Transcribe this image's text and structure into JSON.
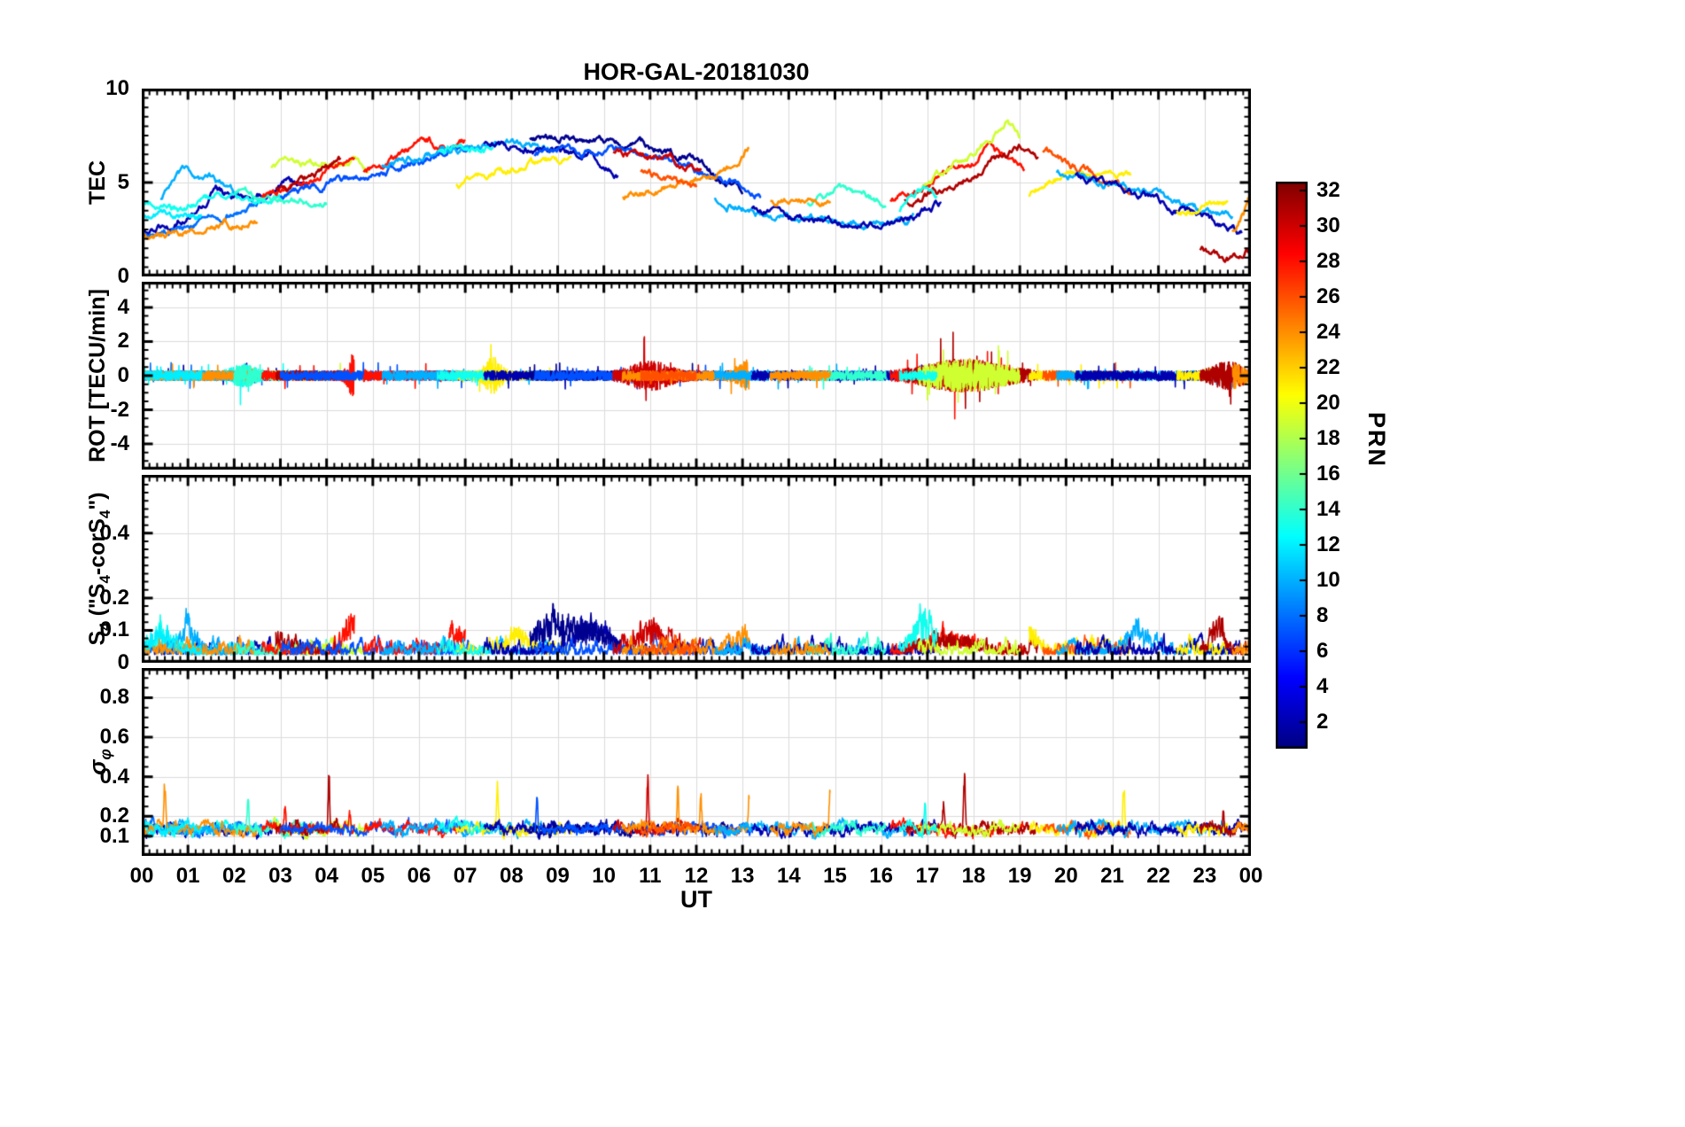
{
  "chart_data": {
    "type": "line",
    "title": "HOR-GAL-20181030",
    "xlabel": "UT",
    "xlim": [
      0,
      24
    ],
    "x_tick_hours": [
      0,
      1,
      2,
      3,
      4,
      5,
      6,
      7,
      8,
      9,
      10,
      11,
      12,
      13,
      14,
      15,
      16,
      17,
      18,
      19,
      20,
      21,
      22,
      23,
      24
    ],
    "x_tick_labels": [
      "00",
      "01",
      "02",
      "03",
      "04",
      "05",
      "06",
      "07",
      "08",
      "09",
      "10",
      "11",
      "12",
      "13",
      "14",
      "15",
      "16",
      "17",
      "18",
      "19",
      "20",
      "21",
      "22",
      "23",
      "00"
    ],
    "x_minor_step_hours": 0.16667,
    "grid": true,
    "grid_color": "#dcdcdc",
    "frame_color": "#000000",
    "colorbar": {
      "label": "PRN",
      "colormap": "jet",
      "cmin": 0.5,
      "cmax": 32.5,
      "ticks": [
        2,
        4,
        6,
        8,
        10,
        12,
        14,
        16,
        18,
        20,
        22,
        24,
        26,
        28,
        30,
        32
      ]
    },
    "panels": [
      {
        "id": "tec",
        "ylabel_plain": "TEC",
        "ylabel_rich": [
          {
            "t": "TEC"
          }
        ],
        "ylim": [
          0,
          10
        ],
        "yticks": [
          0,
          5,
          10
        ],
        "minor_y": 0.5
      },
      {
        "id": "rot",
        "ylabel_plain": "ROT [TECU/min]",
        "ylabel_rich": [
          {
            "t": "ROT [TECU/min]"
          }
        ],
        "ylim": [
          -5.5,
          5.5
        ],
        "yticks": [
          -4,
          -2,
          0,
          2,
          4
        ],
        "minor_y": 0.5
      },
      {
        "id": "s4",
        "ylabel_plain": "S4 (\"S4-corS4\")",
        "ylabel_rich": [
          {
            "t": "S"
          },
          {
            "s": "4"
          },
          {
            "t": " (\"S"
          },
          {
            "s": "4"
          },
          {
            "t": "-corS"
          },
          {
            "s": "4"
          },
          {
            "t": "\")"
          }
        ],
        "ylim": [
          0,
          0.58
        ],
        "yticks": [
          0,
          0.1,
          0.2,
          0.4
        ],
        "minor_y": 0.025
      },
      {
        "id": "sig",
        "ylabel_plain": "sigma_phi",
        "ylabel_rich": [
          {
            "t": "σ"
          },
          {
            "s": "φ"
          }
        ],
        "ylim": [
          0,
          0.95
        ],
        "yticks": [
          0.1,
          0.2,
          0.4,
          0.6,
          0.8
        ],
        "minor_y": 0.05
      }
    ],
    "tracks": [
      {
        "prn": 2,
        "pts": [
          [
            0,
            2.4
          ],
          [
            0.7,
            2.8
          ],
          [
            1.6,
            4.6
          ],
          [
            2.2,
            4.2
          ],
          [
            3.0,
            4.8
          ],
          [
            3.6,
            5.1
          ]
        ]
      },
      {
        "prn": 8,
        "pts": [
          [
            0,
            2.1
          ],
          [
            1.0,
            2.6
          ],
          [
            2.0,
            3.4
          ],
          [
            2.6,
            3.9
          ]
        ]
      },
      {
        "prn": 13,
        "pts": [
          [
            0,
            4.1
          ],
          [
            0.8,
            3.6
          ],
          [
            1.6,
            4.3
          ],
          [
            2.4,
            3.9
          ],
          [
            3.2,
            4.1
          ]
        ]
      },
      {
        "prn": 10,
        "pts": [
          [
            0.4,
            4.2
          ],
          [
            0.9,
            5.4
          ],
          [
            1.5,
            5.1
          ],
          [
            2.1,
            4.4
          ]
        ]
      },
      {
        "prn": 24,
        "pts": [
          [
            0,
            2.2
          ],
          [
            0.8,
            2.4
          ],
          [
            1.7,
            2.6
          ],
          [
            2.5,
            3.2
          ]
        ]
      },
      {
        "prn": 12,
        "pts": [
          [
            0,
            3.0
          ],
          [
            0.6,
            3.3
          ],
          [
            1.3,
            3.1
          ]
        ]
      },
      {
        "prn": 14,
        "pts": [
          [
            2.0,
            4.5
          ],
          [
            2.6,
            4.2
          ],
          [
            3.3,
            4.0
          ],
          [
            4.0,
            4.1
          ]
        ]
      },
      {
        "prn": 19,
        "pts": [
          [
            2.8,
            5.7
          ],
          [
            3.5,
            6.0
          ],
          [
            4.3,
            6.2
          ],
          [
            4.9,
            5.9
          ]
        ]
      },
      {
        "prn": 28,
        "pts": [
          [
            2.6,
            4.4
          ],
          [
            3.4,
            5.0
          ],
          [
            4.2,
            5.9
          ],
          [
            4.6,
            6.3
          ]
        ]
      },
      {
        "prn": 31,
        "pts": [
          [
            2.9,
            4.7
          ],
          [
            3.6,
            5.3
          ],
          [
            4.3,
            6.2
          ]
        ]
      },
      {
        "prn": 7,
        "pts": [
          [
            3.0,
            4.4
          ],
          [
            4.0,
            5.0
          ],
          [
            5.0,
            5.3
          ],
          [
            5.8,
            6.0
          ],
          [
            6.6,
            6.6
          ],
          [
            7.1,
            6.9
          ]
        ]
      },
      {
        "prn": 28,
        "pts": [
          [
            4.8,
            5.6
          ],
          [
            5.5,
            6.4
          ],
          [
            6.2,
            7.2
          ],
          [
            6.6,
            6.8
          ],
          [
            7.0,
            7.1
          ]
        ]
      },
      {
        "prn": 10,
        "pts": [
          [
            5.2,
            5.9
          ],
          [
            6.0,
            6.3
          ],
          [
            7.0,
            7.0
          ],
          [
            7.6,
            7.2
          ],
          [
            8.3,
            7.0
          ],
          [
            8.8,
            6.6
          ]
        ]
      },
      {
        "prn": 21,
        "pts": [
          [
            6.8,
            4.9
          ],
          [
            7.4,
            5.3
          ],
          [
            8.0,
            5.9
          ],
          [
            8.7,
            6.1
          ],
          [
            9.3,
            6.3
          ]
        ]
      },
      {
        "prn": 13,
        "pts": [
          [
            6.4,
            6.7
          ],
          [
            7.0,
            7.0
          ],
          [
            7.6,
            6.8
          ]
        ]
      },
      {
        "prn": 2,
        "pts": [
          [
            7.4,
            7.1
          ],
          [
            8.2,
            6.9
          ],
          [
            9.0,
            6.6
          ],
          [
            9.7,
            6.4
          ],
          [
            10.3,
            5.6
          ]
        ]
      },
      {
        "prn": 1,
        "pts": [
          [
            8.4,
            7.3
          ],
          [
            9.2,
            7.5
          ],
          [
            9.9,
            7.2
          ],
          [
            10.6,
            7.0
          ],
          [
            11.3,
            6.7
          ],
          [
            12.0,
            6.2
          ],
          [
            12.6,
            5.0
          ],
          [
            13.0,
            4.4
          ]
        ]
      },
      {
        "prn": 7,
        "pts": [
          [
            8.5,
            6.4
          ],
          [
            9.4,
            6.7
          ],
          [
            10.2,
            6.9
          ],
          [
            11.0,
            6.5
          ],
          [
            12.0,
            5.6
          ],
          [
            12.8,
            5.2
          ],
          [
            13.4,
            4.4
          ]
        ]
      },
      {
        "prn": 30,
        "pts": [
          [
            10.2,
            6.6
          ],
          [
            10.8,
            6.4
          ],
          [
            11.5,
            6.1
          ],
          [
            12.1,
            5.8
          ]
        ]
      },
      {
        "prn": 24,
        "pts": [
          [
            10.4,
            4.1
          ],
          [
            11.0,
            4.6
          ],
          [
            11.8,
            5.2
          ],
          [
            12.4,
            5.5
          ],
          [
            12.9,
            6.0
          ],
          [
            13.15,
            6.9
          ]
        ]
      },
      {
        "prn": 26,
        "pts": [
          [
            10.8,
            5.6
          ],
          [
            11.4,
            5.0
          ],
          [
            12.0,
            4.7
          ]
        ]
      },
      {
        "prn": 10,
        "pts": [
          [
            12.4,
            4.3
          ],
          [
            13.2,
            3.6
          ],
          [
            14.2,
            3.2
          ],
          [
            15.2,
            3.0
          ],
          [
            16.0,
            2.9
          ],
          [
            16.7,
            3.1
          ]
        ]
      },
      {
        "prn": 2,
        "pts": [
          [
            13.2,
            3.7
          ],
          [
            14.0,
            3.3
          ],
          [
            15.0,
            2.9
          ],
          [
            16.0,
            2.8
          ],
          [
            16.8,
            3.2
          ],
          [
            17.3,
            3.9
          ]
        ]
      },
      {
        "prn": 14,
        "pts": [
          [
            14.4,
            4.0
          ],
          [
            15.0,
            4.5
          ],
          [
            15.6,
            4.2
          ],
          [
            16.1,
            3.9
          ]
        ]
      },
      {
        "prn": 24,
        "pts": [
          [
            13.6,
            4.0
          ],
          [
            14.3,
            4.2
          ],
          [
            14.9,
            3.9
          ]
        ]
      },
      {
        "prn": 28,
        "pts": [
          [
            16.2,
            4.1
          ],
          [
            16.9,
            4.9
          ],
          [
            17.5,
            5.7
          ],
          [
            18.0,
            6.2
          ],
          [
            18.35,
            7.0
          ],
          [
            18.7,
            6.4
          ],
          [
            19.1,
            5.9
          ]
        ]
      },
      {
        "prn": 31,
        "pts": [
          [
            16.5,
            4.0
          ],
          [
            17.2,
            4.6
          ],
          [
            17.9,
            5.4
          ],
          [
            18.6,
            6.3
          ],
          [
            19.0,
            6.8
          ],
          [
            19.4,
            6.0
          ]
        ]
      },
      {
        "prn": 19,
        "pts": [
          [
            16.8,
            4.6
          ],
          [
            17.4,
            5.6
          ],
          [
            17.9,
            6.4
          ],
          [
            18.35,
            7.3
          ],
          [
            18.7,
            8.3
          ],
          [
            19.0,
            7.4
          ]
        ]
      },
      {
        "prn": 13,
        "pts": [
          [
            16.4,
            3.5
          ],
          [
            16.8,
            4.7
          ],
          [
            17.2,
            4.2
          ]
        ]
      },
      {
        "prn": 21,
        "pts": [
          [
            19.2,
            4.3
          ],
          [
            19.7,
            5.3
          ],
          [
            20.1,
            5.6
          ],
          [
            20.7,
            5.5
          ],
          [
            21.4,
            5.1
          ]
        ]
      },
      {
        "prn": 26,
        "pts": [
          [
            19.5,
            6.6
          ],
          [
            19.9,
            6.2
          ],
          [
            20.4,
            5.7
          ],
          [
            20.9,
            5.0
          ],
          [
            21.4,
            4.5
          ]
        ]
      },
      {
        "prn": 10,
        "pts": [
          [
            19.8,
            5.6
          ],
          [
            20.6,
            5.2
          ],
          [
            21.5,
            4.6
          ],
          [
            22.3,
            4.0
          ],
          [
            23.1,
            3.4
          ],
          [
            23.6,
            3.3
          ]
        ]
      },
      {
        "prn": 2,
        "pts": [
          [
            20.2,
            5.4
          ],
          [
            21.0,
            4.8
          ],
          [
            21.8,
            4.2
          ],
          [
            22.6,
            3.4
          ],
          [
            23.3,
            2.7
          ],
          [
            23.8,
            2.4
          ]
        ]
      },
      {
        "prn": 21,
        "pts": [
          [
            22.4,
            3.4
          ],
          [
            23.0,
            3.6
          ],
          [
            23.5,
            3.9
          ]
        ]
      },
      {
        "prn": 31,
        "pts": [
          [
            22.9,
            1.3
          ],
          [
            23.5,
            1.0
          ],
          [
            24,
            1.5
          ]
        ]
      },
      {
        "prn": 24,
        "pts": [
          [
            23.6,
            2.3
          ],
          [
            23.85,
            3.3
          ],
          [
            24,
            4.3
          ]
        ]
      }
    ],
    "rot_model": {
      "amp": 0.28,
      "bursts": [
        {
          "t": 2.2,
          "w": 0.3,
          "g": 1.5,
          "prns": [
            13,
            14
          ]
        },
        {
          "t": 4.6,
          "w": 0.15,
          "g": 4,
          "prns": [
            28
          ]
        },
        {
          "t": 7.6,
          "w": 0.2,
          "g": 3,
          "prns": [
            21
          ]
        },
        {
          "t": 11.0,
          "w": 0.5,
          "g": 2.2,
          "prns": [
            30
          ]
        },
        {
          "t": 13.1,
          "w": 0.25,
          "g": 2.5,
          "prns": [
            24
          ]
        },
        {
          "t": 17.8,
          "w": 1.0,
          "g": 2.5,
          "prns": [
            28,
            31,
            19,
            26
          ]
        },
        {
          "t": 23.5,
          "w": 0.4,
          "g": 2.0,
          "prns": [
            31,
            24
          ]
        }
      ]
    },
    "s4_model": {
      "base": 0.025,
      "noise": 0.035,
      "bumps": [
        {
          "t": 0.4,
          "w": 0.3,
          "h": 0.05,
          "prns": [
            12,
            13
          ]
        },
        {
          "t": 1.0,
          "w": 0.3,
          "h": 0.06,
          "prns": [
            10
          ]
        },
        {
          "t": 2.9,
          "w": 0.25,
          "h": 0.05,
          "prns": [
            31
          ]
        },
        {
          "t": 4.5,
          "w": 0.2,
          "h": 0.07,
          "prns": [
            28
          ]
        },
        {
          "t": 6.9,
          "w": 0.3,
          "h": 0.05,
          "prns": [
            28
          ]
        },
        {
          "t": 8.1,
          "w": 0.3,
          "h": 0.05,
          "prns": [
            21
          ]
        },
        {
          "t": 8.8,
          "w": 0.5,
          "h": 0.08,
          "prns": [
            1
          ]
        },
        {
          "t": 9.7,
          "w": 0.5,
          "h": 0.07,
          "prns": [
            1,
            2
          ]
        },
        {
          "t": 11.0,
          "w": 0.45,
          "h": 0.07,
          "prns": [
            30
          ]
        },
        {
          "t": 13.0,
          "w": 0.3,
          "h": 0.04,
          "prns": [
            24
          ]
        },
        {
          "t": 16.9,
          "w": 0.3,
          "h": 0.09,
          "prns": [
            13
          ]
        },
        {
          "t": 17.5,
          "w": 0.6,
          "h": 0.04,
          "prns": [
            28,
            31
          ]
        },
        {
          "t": 19.2,
          "w": 0.3,
          "h": 0.06,
          "prns": [
            21
          ]
        },
        {
          "t": 21.5,
          "w": 0.3,
          "h": 0.07,
          "prns": [
            10
          ]
        },
        {
          "t": 23.3,
          "w": 0.15,
          "h": 0.09,
          "prns": [
            31
          ]
        }
      ]
    },
    "sigma_model": {
      "base": 0.125,
      "noise": 0.025,
      "spike_width": 0.025,
      "spikes": [
        {
          "t": 0.5,
          "h": 0.25,
          "prn": 24
        },
        {
          "t": 2.3,
          "h": 0.12,
          "prn": 14
        },
        {
          "t": 3.1,
          "h": 0.12,
          "prn": 28
        },
        {
          "t": 4.05,
          "h": 0.25,
          "prn": 31
        },
        {
          "t": 4.5,
          "h": 0.1,
          "prn": 28
        },
        {
          "t": 7.7,
          "h": 0.2,
          "prn": 21
        },
        {
          "t": 8.55,
          "h": 0.14,
          "prn": 7
        },
        {
          "t": 10.95,
          "h": 0.26,
          "prn": 30
        },
        {
          "t": 11.6,
          "h": 0.2,
          "prn": 24
        },
        {
          "t": 12.1,
          "h": 0.16,
          "prn": 24
        },
        {
          "t": 13.15,
          "h": 0.2,
          "prn": 24
        },
        {
          "t": 14.9,
          "h": 0.25,
          "prn": 24
        },
        {
          "t": 16.95,
          "h": 0.12,
          "prn": 13
        },
        {
          "t": 17.35,
          "h": 0.14,
          "prn": 31
        },
        {
          "t": 17.8,
          "h": 0.26,
          "prn": 31
        },
        {
          "t": 21.25,
          "h": 0.21,
          "prn": 21
        },
        {
          "t": 23.4,
          "h": 0.1,
          "prn": 31
        }
      ]
    }
  }
}
